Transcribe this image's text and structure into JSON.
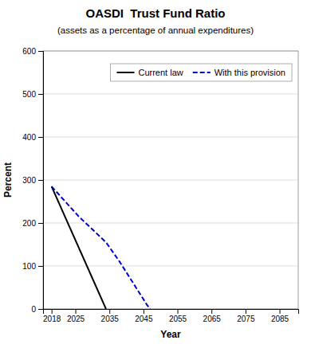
{
  "chart_data": {
    "type": "line",
    "title": "OASDI  Trust Fund Ratio",
    "subtitle": "(assets as a percentage of annual expenditures)",
    "xlabel": "Year",
    "ylabel": "Percent",
    "xlim": [
      2015.5,
      2090.5
    ],
    "ylim": [
      0,
      600
    ],
    "xticks": [
      2018,
      2025,
      2035,
      2045,
      2055,
      2065,
      2075,
      2085
    ],
    "yticks": [
      0,
      100,
      200,
      300,
      400,
      500,
      600
    ],
    "grid": "y",
    "legend": "top-right",
    "series": [
      {
        "name": "Current law",
        "color": "#000000",
        "line_style": "solid",
        "x": [
          2018,
          2034
        ],
        "values": [
          285,
          0
        ]
      },
      {
        "name": "With this provision",
        "color": "#0000cc",
        "line_style": "dashed",
        "x": [
          2018,
          2022,
          2026,
          2030,
          2034,
          2038,
          2042,
          2046,
          2047
        ],
        "values": [
          285,
          250,
          215,
          185,
          155,
          110,
          60,
          10,
          0
        ]
      }
    ]
  }
}
